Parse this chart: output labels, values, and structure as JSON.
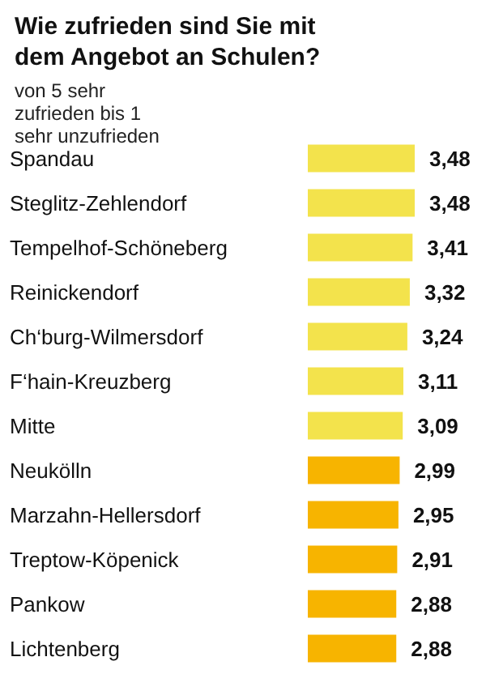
{
  "chart_data": {
    "type": "bar",
    "orientation": "horizontal",
    "title": "Wie zufrieden sind Sie mit dem Angebot an Schulen?",
    "subtitle": "von 5 sehr zufrieden bis 1 sehr unzufrieden",
    "categories": [
      "Spandau",
      "Steglitz-Zehlendorf",
      "Tempelhof-Schöneberg",
      "Reinickendorf",
      "Ch‘burg-Wilmersdorf",
      "F‘hain-Kreuzberg",
      "Mitte",
      "Neukölln",
      "Marzahn-Hellersdorf",
      "Treptow-Köpenick",
      "Pankow",
      "Lichtenberg"
    ],
    "values": [
      3.48,
      3.48,
      3.41,
      3.32,
      3.24,
      3.11,
      3.09,
      2.99,
      2.95,
      2.91,
      2.88,
      2.88
    ],
    "value_labels": [
      "3,48",
      "3,48",
      "3,41",
      "3,32",
      "3,24",
      "3,11",
      "3,09",
      "2,99",
      "2,95",
      "2,91",
      "2,88",
      "2,88"
    ],
    "colors": [
      "#f3e34c",
      "#f3e34c",
      "#f3e34c",
      "#f3e34c",
      "#f3e34c",
      "#f3e34c",
      "#f3e34c",
      "#f7b400",
      "#f7b400",
      "#f7b400",
      "#f7b400",
      "#f7b400"
    ]
  }
}
